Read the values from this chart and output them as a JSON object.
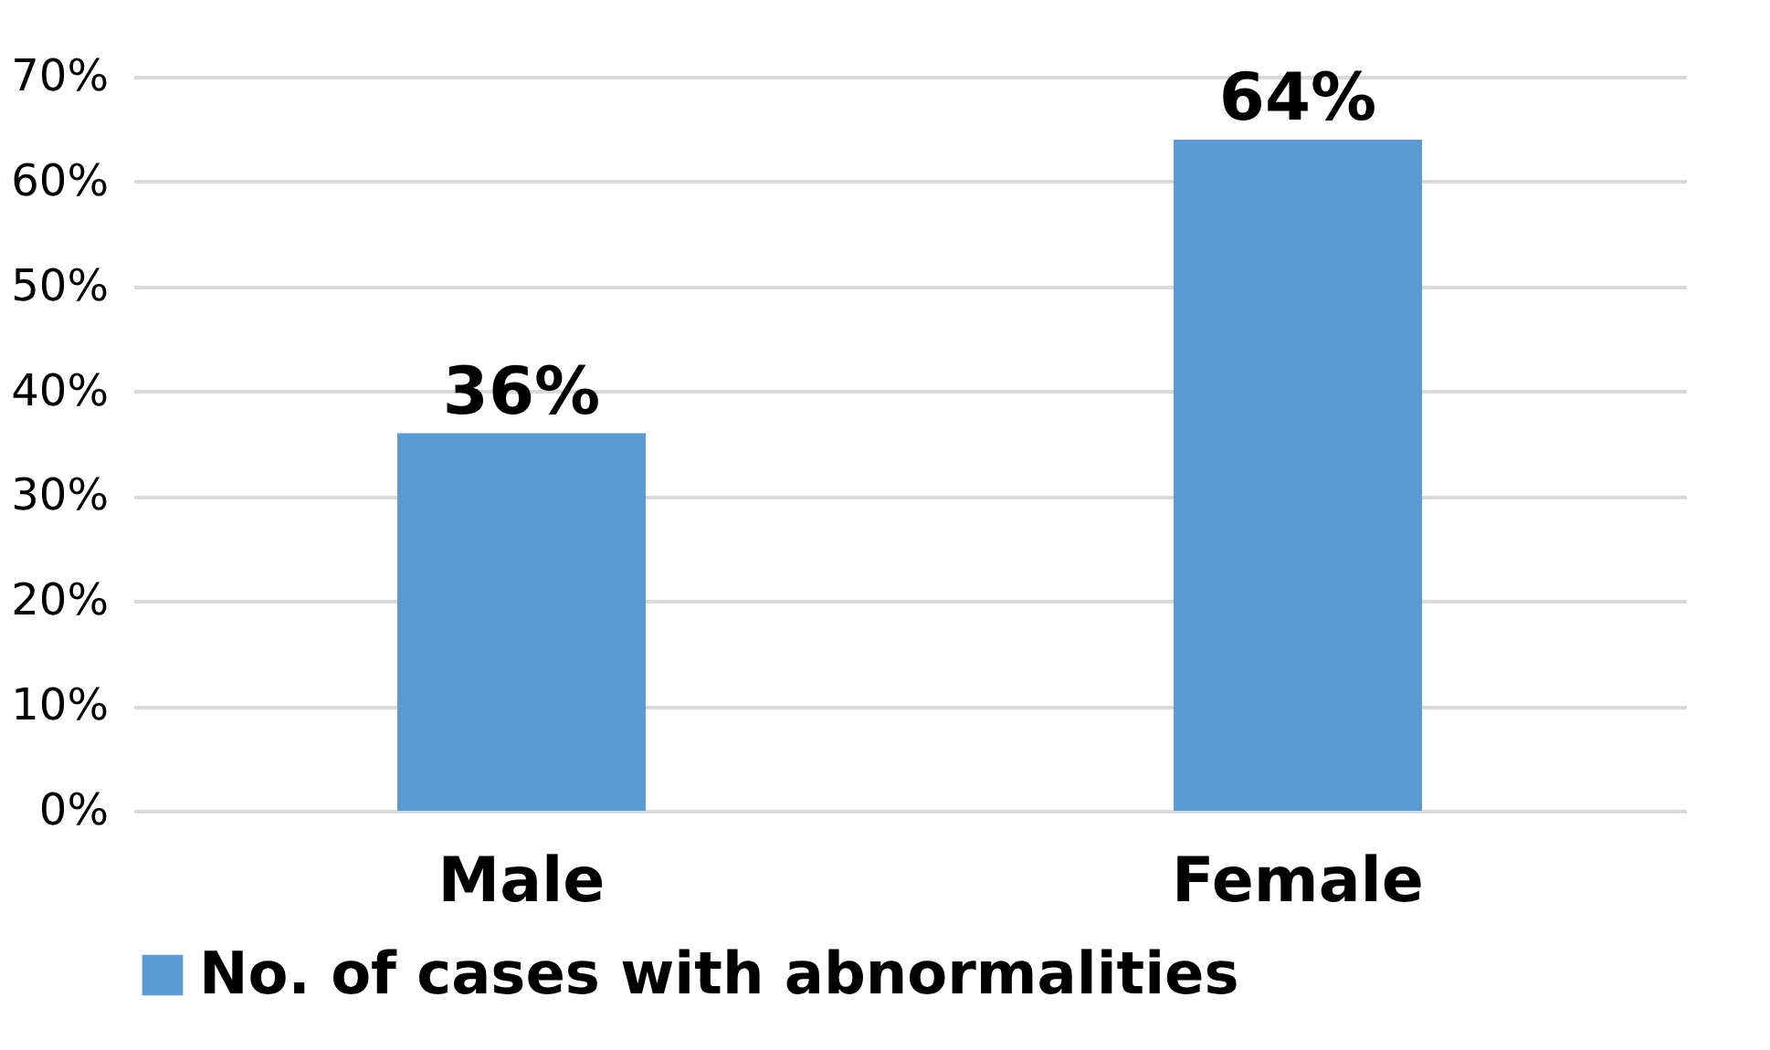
{
  "chart_data": {
    "type": "bar",
    "categories": [
      "Male",
      "Female"
    ],
    "series": [
      {
        "name": "No. of cases with abnormalities",
        "color": "#5b9bd5",
        "values": [
          36,
          64
        ],
        "value_labels": [
          "36%",
          "64%"
        ]
      }
    ],
    "ylim": [
      0,
      70
    ],
    "yticks": [
      {
        "value": 0,
        "label": "0%"
      },
      {
        "value": 10,
        "label": "10%"
      },
      {
        "value": 20,
        "label": "20%"
      },
      {
        "value": 30,
        "label": "30%"
      },
      {
        "value": 40,
        "label": "40%"
      },
      {
        "value": 50,
        "label": "50%"
      },
      {
        "value": 60,
        "label": "60%"
      },
      {
        "value": 70,
        "label": "70%"
      }
    ],
    "grid": "y",
    "legend": "bottom"
  }
}
